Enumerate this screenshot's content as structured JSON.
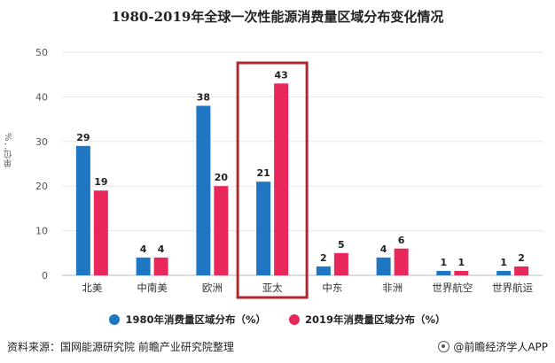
{
  "title": "1980-2019年全球一次性能源消费量区域分布变化情况",
  "ylabel": "单位：%",
  "legend": [
    {
      "label": "1980年消费量区域分布（%）",
      "color": "#1f77c4"
    },
    {
      "label": "2019年消费量区域分布（%）",
      "color": "#e8285a"
    }
  ],
  "footer": {
    "source": "资料来源：国网能源研究院 前瞻产业研究院整理",
    "brand": "@前瞻经济学人APP"
  },
  "colors": {
    "series1": "#1f77c4",
    "series2": "#e8285a",
    "highlight": "#b3262b"
  },
  "chart_data": {
    "type": "bar",
    "title": "1980-2019年全球一次性能源消费量区域分布变化情况",
    "ylabel": "单位：%",
    "ylim": [
      0,
      50
    ],
    "yticks": [
      0,
      10,
      20,
      30,
      40,
      50
    ],
    "grid": true,
    "legend_position": "bottom",
    "highlight_category": "亚太",
    "categories": [
      "北美",
      "中南美",
      "欧洲",
      "亚太",
      "中东",
      "非洲",
      "世界航空",
      "世界航运"
    ],
    "series": [
      {
        "name": "1980年消费量区域分布（%）",
        "values": [
          29,
          4,
          38,
          21,
          2,
          4,
          1,
          1
        ]
      },
      {
        "name": "2019年消费量区域分布（%）",
        "values": [
          19,
          4,
          20,
          43,
          5,
          6,
          1,
          2
        ]
      }
    ]
  }
}
